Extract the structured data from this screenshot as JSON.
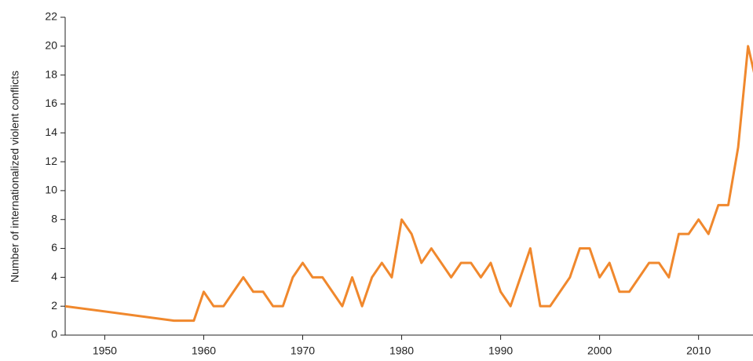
{
  "chart_data": {
    "type": "line",
    "y_label": "Number of internationalized violent conflicts",
    "x": [
      1946,
      1957,
      1958,
      1959,
      1960,
      1961,
      1962,
      1963,
      1964,
      1965,
      1966,
      1967,
      1968,
      1969,
      1970,
      1971,
      1972,
      1973,
      1974,
      1975,
      1976,
      1977,
      1978,
      1979,
      1980,
      1981,
      1982,
      1983,
      1984,
      1985,
      1986,
      1987,
      1988,
      1989,
      1990,
      1991,
      1992,
      1993,
      1994,
      1995,
      1996,
      1997,
      1998,
      1999,
      2000,
      2001,
      2002,
      2003,
      2004,
      2005,
      2006,
      2007,
      2008,
      2009,
      2010,
      2011,
      2012,
      2013,
      2014,
      2015,
      2016
    ],
    "series": [
      {
        "name": "Internationalized violent conflicts",
        "color": "#f0882d",
        "values": [
          2,
          1,
          1,
          1,
          3,
          2,
          2,
          3,
          4,
          3,
          3,
          2,
          2,
          4,
          5,
          4,
          4,
          3,
          2,
          4,
          2,
          4,
          5,
          4,
          8,
          7,
          5,
          6,
          5,
          4,
          5,
          5,
          4,
          5,
          3,
          2,
          4,
          6,
          2,
          2,
          3,
          4,
          6,
          6,
          4,
          5,
          3,
          3,
          4,
          5,
          5,
          4,
          7,
          7,
          8,
          7,
          9,
          9,
          13,
          20,
          17
        ]
      }
    ],
    "xlim": [
      1946,
      2015.5
    ],
    "xticks": [
      1950,
      1960,
      1970,
      1980,
      1990,
      2000,
      2010
    ],
    "ylim": [
      0,
      22
    ],
    "yticks": [
      0,
      2,
      4,
      6,
      8,
      10,
      12,
      14,
      16,
      18,
      20,
      22
    ]
  }
}
